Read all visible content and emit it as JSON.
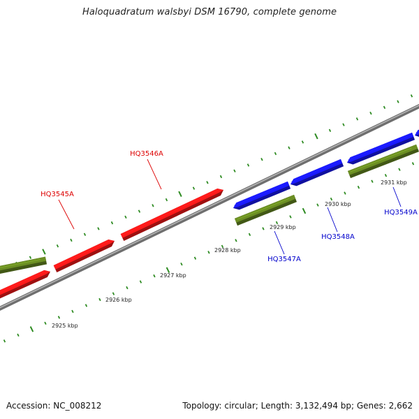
{
  "title": "Haloquadratum walsbyi DSM 16790, complete genome",
  "footer": {
    "accession": "Accession: NC_008212",
    "summary": "Topology: circular; Length: 3,132,494 bp; Genes: 2,662"
  },
  "colors": {
    "background": "#ffffff",
    "backbone": "#888888",
    "tick": "#2e8b22",
    "gene_red": "#ff1a1a",
    "gene_blue": "#1a1aff",
    "gene_green": "#6b8e23",
    "label_red": "#dd0000",
    "label_blue": "#0000cc"
  },
  "scale_labels": [
    "2925 kbp",
    "2926 kbp",
    "2927 kbp",
    "2928 kbp",
    "2929 kbp",
    "2930 kbp",
    "2931 kbp"
  ],
  "gene_labels": [
    {
      "text": "HQ3545A",
      "color": "red"
    },
    {
      "text": "HQ3546A",
      "color": "red"
    },
    {
      "text": "HQ3547A",
      "color": "blue"
    },
    {
      "text": "HQ3548A",
      "color": "blue"
    },
    {
      "text": "HQ3549A",
      "color": "blue"
    }
  ],
  "genes": [
    {
      "name": "gene-olive-left",
      "color": "green",
      "strand": "outer"
    },
    {
      "name": "gene-red-left",
      "color": "red",
      "strand": "inner"
    },
    {
      "name": "gene-HQ3545A",
      "color": "red",
      "strand": "inner"
    },
    {
      "name": "gene-HQ3546A",
      "color": "red",
      "strand": "inner"
    },
    {
      "name": "gene-HQ3547A-blue",
      "color": "blue",
      "strand": "inner"
    },
    {
      "name": "gene-HQ3548A-blue",
      "color": "blue",
      "strand": "inner"
    },
    {
      "name": "gene-HQ3549A-blue",
      "color": "blue",
      "strand": "inner"
    },
    {
      "name": "gene-blue-right-edge",
      "color": "blue",
      "strand": "inner"
    },
    {
      "name": "gene-HQ3547A-olive",
      "color": "green",
      "strand": "outer"
    },
    {
      "name": "gene-HQ3549A-olive",
      "color": "green",
      "strand": "outer"
    }
  ]
}
